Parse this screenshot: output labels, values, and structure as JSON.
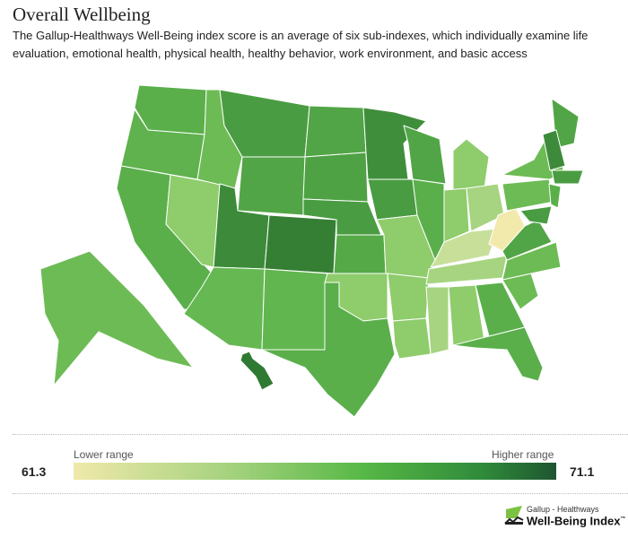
{
  "header": {
    "title": "Overall Wellbeing",
    "description": "The Gallup-Healthways Well-Being index score is an average of six sub-indexes, which individually examine life evaluation, emotional health, physical health, healthy behavior, work environment, and basic access"
  },
  "legend": {
    "lower_label": "Lower range",
    "higher_label": "Higher range",
    "min": "61.3",
    "max": "71.1"
  },
  "logo": {
    "line1": "Gallup - Healthways",
    "line2": "Well-Being Index",
    "tm": "™"
  },
  "state_colors": {
    "WA": "#5aaf4b",
    "OR": "#5fb24d",
    "CA": "#5aaf4b",
    "NV": "#8fcc6c",
    "ID": "#6dbb55",
    "MT": "#4a9c42",
    "WY": "#52a546",
    "UT": "#3d8b3a",
    "CO": "#357f34",
    "AZ": "#66b852",
    "NM": "#62b64f",
    "ND": "#52a546",
    "SD": "#4fa244",
    "NE": "#4a9c42",
    "KS": "#56a947",
    "OK": "#8fcc6c",
    "TX": "#5aaf4b",
    "MN": "#3f8e3b",
    "IA": "#4a9c42",
    "MO": "#8fcc6c",
    "AR": "#8fcc6c",
    "LA": "#8fcc6c",
    "WI": "#52a546",
    "IL": "#5aaf4b",
    "MI": "#8fcc6c",
    "IN": "#8fcc6c",
    "OH": "#a6d480",
    "KY": "#c8df9a",
    "WV": "#f2eaac",
    "TN": "#a6d480",
    "MS": "#a6d480",
    "AL": "#8fcc6c",
    "GA": "#5aaf4b",
    "FL": "#5aaf4b",
    "SC": "#6dbb55",
    "NC": "#6dbb55",
    "VA": "#52a546",
    "PA": "#6dbb55",
    "NY": "#6dbb55",
    "ME": "#52a546",
    "VT": "#3d8b3a",
    "MA": "#4a9c42",
    "NJ": "#5aaf4b",
    "MD": "#4a9c42",
    "AK": "#6dbb55",
    "HI": "#2f7a33"
  },
  "palette": {
    "low": "#efe9aa",
    "high": "#1e5530"
  }
}
